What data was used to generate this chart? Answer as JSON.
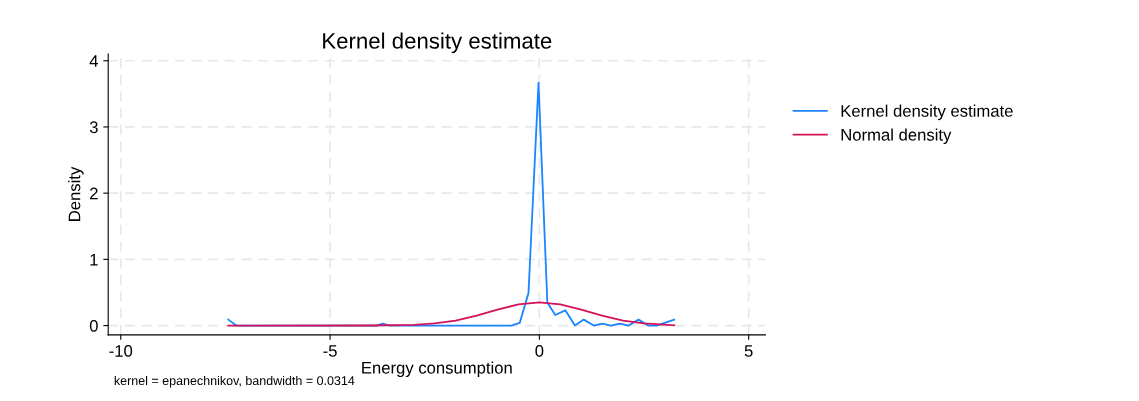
{
  "chart_data": {
    "type": "line",
    "title": "Kernel density estimate",
    "xlabel": "Energy consumption",
    "ylabel": "Density",
    "annotations": [
      "kernel = epanechnikov, bandwidth = 0.0314"
    ],
    "xlim": [
      -10.3,
      5.4
    ],
    "ylim": [
      -0.14,
      4.1
    ],
    "xticks": [
      -10,
      -5,
      0,
      5
    ],
    "yticks": [
      0,
      1,
      2,
      3,
      4
    ],
    "grid": true,
    "legend": "right",
    "line_style": "solid",
    "marker": "none",
    "series": [
      {
        "name": "Kernel density estimate",
        "color": "#1a85ff",
        "x": [
          -7.43,
          -7.24,
          -3.89,
          -3.74,
          -3.58,
          -0.67,
          -0.47,
          -0.26,
          -0.02,
          0.19,
          0.38,
          0.62,
          0.85,
          1.06,
          1.3,
          1.5,
          1.71,
          1.92,
          2.13,
          2.37,
          2.6,
          2.8,
          3.22
        ],
        "values": [
          0.09,
          0,
          0,
          0.03,
          0,
          0,
          0.04,
          0.49,
          3.67,
          0.35,
          0.16,
          0.23,
          0,
          0.09,
          0,
          0.03,
          0,
          0.03,
          0,
          0.09,
          0,
          0,
          0.09
        ]
      },
      {
        "name": "Normal density",
        "color": "#d41159",
        "x": [
          -7.43,
          -4,
          -3,
          -2.5,
          -2,
          -1.5,
          -1,
          -0.5,
          0,
          0.5,
          1,
          1.5,
          2,
          2.5,
          3.22
        ],
        "values": [
          0,
          0.001,
          0.011,
          0.032,
          0.074,
          0.15,
          0.24,
          0.32,
          0.35,
          0.32,
          0.24,
          0.15,
          0.074,
          0.032,
          0.005
        ]
      }
    ]
  }
}
